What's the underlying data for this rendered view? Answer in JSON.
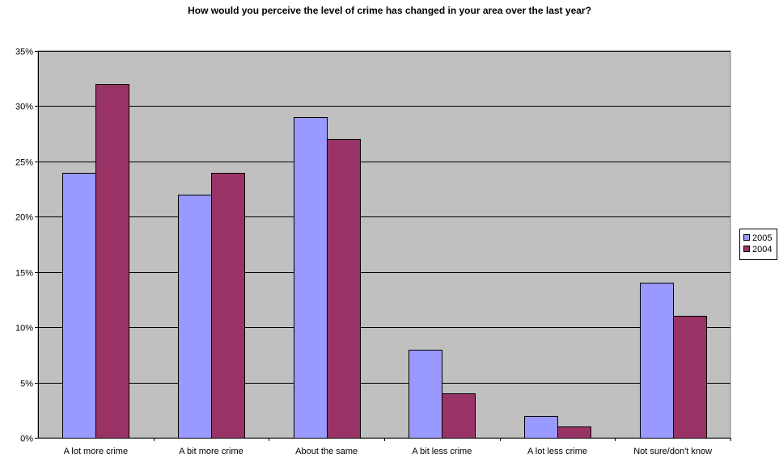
{
  "chart_data": {
    "type": "bar",
    "title": "How would you perceive the level of crime has changed in your area over the last year?",
    "xlabel": "",
    "ylabel": "",
    "categories": [
      "A lot more crime",
      "A bit more crime",
      "About the same",
      "A bit less crime",
      "A lot less crime",
      "Not sure/don't know"
    ],
    "series": [
      {
        "name": "2005",
        "values": [
          24,
          22,
          29,
          8,
          2,
          14
        ],
        "color": "#9999ff"
      },
      {
        "name": "2004",
        "values": [
          32,
          24,
          27,
          4,
          1,
          11
        ],
        "color": "#993366"
      }
    ],
    "ylim": [
      0,
      35
    ],
    "y_ticks": [
      0,
      5,
      10,
      15,
      20,
      25,
      30,
      35
    ],
    "y_tick_format": "percent",
    "grid": true,
    "legend_position": "right",
    "plot_background": "#c0c0c0"
  }
}
